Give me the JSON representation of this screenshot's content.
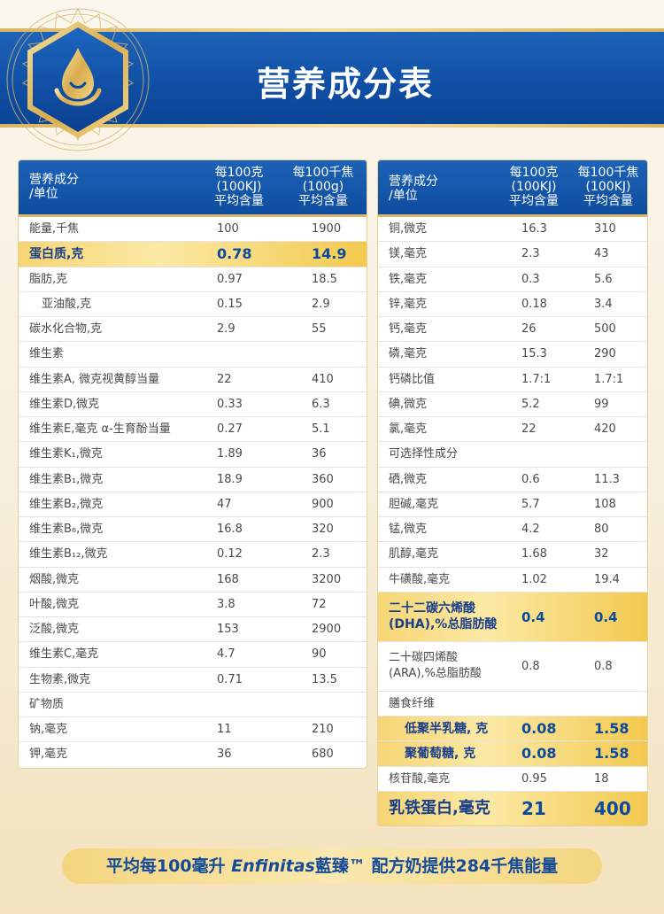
{
  "title": "营养成分表",
  "left_table": {
    "headers": [
      "营养成分\n/单位",
      "每100克\n(100KJ)\n平均含量",
      "每100千焦\n(100g)\n平均含量"
    ],
    "rows": [
      {
        "name": "能量,千焦",
        "v1": "100",
        "v2": "1900"
      },
      {
        "name": "蛋白质,克",
        "v1": "0.78",
        "v2": "14.9",
        "highlight": true
      },
      {
        "name": "脂肪,克",
        "v1": "0.97",
        "v2": "18.5"
      },
      {
        "name": "亚油酸,克",
        "v1": "0.15",
        "v2": "2.9",
        "indent": true
      },
      {
        "name": "碳水化合物,克",
        "v1": "2.9",
        "v2": "55"
      },
      {
        "name": "维生素",
        "v1": "",
        "v2": ""
      },
      {
        "name": "维生素A, 微克视黄醇当量",
        "v1": "22",
        "v2": "410"
      },
      {
        "name": "维生素D,微克",
        "v1": "0.33",
        "v2": "6.3"
      },
      {
        "name": "维生素E,毫克 α-生育酚当量",
        "v1": "0.27",
        "v2": "5.1"
      },
      {
        "name": "维生素K₁,微克",
        "v1": "1.89",
        "v2": "36"
      },
      {
        "name": "维生素B₁,微克",
        "v1": "18.9",
        "v2": "360"
      },
      {
        "name": "维生素B₂,微克",
        "v1": "47",
        "v2": "900"
      },
      {
        "name": "维生素B₆,微克",
        "v1": "16.8",
        "v2": "320"
      },
      {
        "name": "维生素B₁₂,微克",
        "v1": "0.12",
        "v2": "2.3"
      },
      {
        "name": "烟酸,微克",
        "v1": "168",
        "v2": "3200"
      },
      {
        "name": "叶酸,微克",
        "v1": "3.8",
        "v2": "72"
      },
      {
        "name": "泛酸,微克",
        "v1": "153",
        "v2": "2900"
      },
      {
        "name": "维生素C,毫克",
        "v1": "4.7",
        "v2": "90"
      },
      {
        "name": "生物素,微克",
        "v1": "0.71",
        "v2": "13.5"
      },
      {
        "name": "矿物质",
        "v1": "",
        "v2": ""
      },
      {
        "name": "钠,毫克",
        "v1": "11",
        "v2": "210"
      },
      {
        "name": "钾,毫克",
        "v1": "36",
        "v2": "680"
      }
    ]
  },
  "right_table": {
    "headers": [
      "营养成分\n/单位",
      "每100克\n(100KJ)\n平均含量",
      "每100千焦\n(100KJ)\n平均含量"
    ],
    "rows": [
      {
        "name": "铜,微克",
        "v1": "16.3",
        "v2": "310"
      },
      {
        "name": "镁,毫克",
        "v1": "2.3",
        "v2": "43"
      },
      {
        "name": "铁,毫克",
        "v1": "0.3",
        "v2": "5.6"
      },
      {
        "name": "锌,毫克",
        "v1": "0.18",
        "v2": "3.4"
      },
      {
        "name": "钙,毫克",
        "v1": "26",
        "v2": "500"
      },
      {
        "name": "磷,毫克",
        "v1": "15.3",
        "v2": "290"
      },
      {
        "name": "钙磷比值",
        "v1": "1.7:1",
        "v2": "1.7:1"
      },
      {
        "name": "碘,微克",
        "v1": "5.2",
        "v2": "99"
      },
      {
        "name": "氯,毫克",
        "v1": "22",
        "v2": "420"
      },
      {
        "name": "可选择性成分",
        "v1": "",
        "v2": ""
      },
      {
        "name": "硒,微克",
        "v1": "0.6",
        "v2": "11.3"
      },
      {
        "name": "胆碱,毫克",
        "v1": "5.7",
        "v2": "108"
      },
      {
        "name": "锰,微克",
        "v1": "4.2",
        "v2": "80"
      },
      {
        "name": "肌醇,毫克",
        "v1": "1.68",
        "v2": "32"
      },
      {
        "name": "牛磺酸,毫克",
        "v1": "1.02",
        "v2": "19.4"
      },
      {
        "name": "二十二碳六烯酸\n(DHA),%总脂肪酸",
        "v1": "0.4",
        "v2": "0.4",
        "highlight": true,
        "tall": true
      },
      {
        "name": "二十碳四烯酸\n(ARA),%总脂肪酸",
        "v1": "0.8",
        "v2": "0.8",
        "tall": true
      },
      {
        "name": "膳食纤维",
        "v1": "",
        "v2": ""
      },
      {
        "name": "低聚半乳糖, 克",
        "v1": "0.08",
        "v2": "1.58",
        "highlight": true,
        "sub": true
      },
      {
        "name": "聚葡萄糖, 克",
        "v1": "0.08",
        "v2": "1.58",
        "highlight": true,
        "sub": true
      },
      {
        "name": "核苷酸,毫克",
        "v1": "0.95",
        "v2": "18"
      },
      {
        "name": "乳铁蛋白,毫克",
        "v1": "21",
        "v2": "400",
        "highlight": true,
        "big": true
      }
    ]
  },
  "footer": {
    "prefix": "平均每100毫升 ",
    "brand": "Enfinitas",
    "brand_cn": "藍臻™",
    "suffix": " 配方奶提供284千焦能量"
  },
  "colors": {
    "header_blue": "#0f4ea3",
    "gold": "#f3c94f",
    "highlight_text": "#0d4a9c"
  },
  "logo_icon": "oil-drop-icon"
}
